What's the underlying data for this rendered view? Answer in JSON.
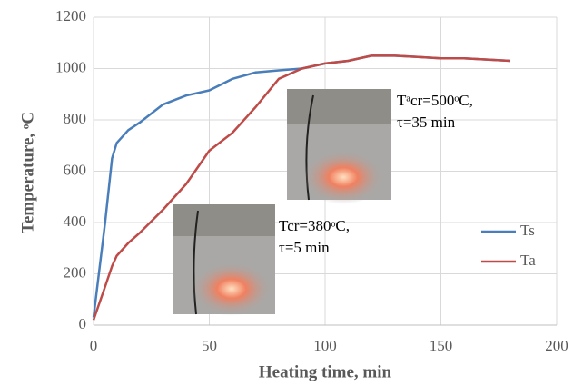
{
  "chart_data": {
    "type": "line",
    "x": [
      0,
      5,
      8,
      10,
      15,
      20,
      30,
      40,
      50,
      60,
      70,
      80,
      90,
      100,
      110,
      120,
      130,
      140,
      150,
      160,
      170,
      180
    ],
    "series": [
      {
        "name": "Ts",
        "color": "#4a7ebb",
        "values": [
          30,
          400,
          650,
          710,
          760,
          790,
          860,
          895,
          915,
          960,
          985,
          993,
          1000,
          1020,
          1030,
          1050,
          1050,
          1045,
          1040,
          1040,
          1035,
          1030
        ]
      },
      {
        "name": "Ta",
        "color": "#be4b48",
        "values": [
          20,
          150,
          230,
          270,
          320,
          360,
          450,
          550,
          680,
          750,
          850,
          960,
          1000,
          1020,
          1030,
          1050,
          1050,
          1045,
          1040,
          1040,
          1035,
          1030
        ]
      }
    ],
    "xlabel": "Heating time, min",
    "ylabel": "Temperature, ᵒC",
    "xlim": [
      0,
      200
    ],
    "xticks": [
      0,
      50,
      100,
      150,
      200
    ],
    "ylim": [
      0,
      1200
    ],
    "yticks": [
      0,
      200,
      400,
      600,
      800,
      1000,
      1200
    ],
    "grid": true,
    "annotations": [
      {
        "lines": [
          "Tᵃcr=500ᵒC,",
          "τ=35 min"
        ]
      },
      {
        "lines": [
          "Tcr=380ᵒC,",
          "τ=5 min"
        ]
      }
    ]
  }
}
